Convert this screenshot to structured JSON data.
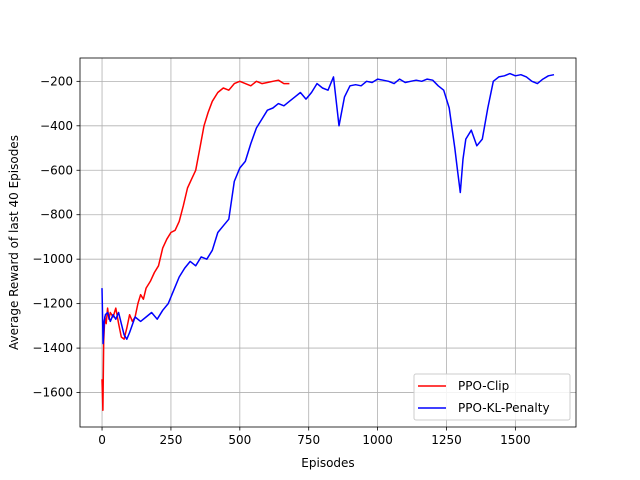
{
  "chart_data": {
    "type": "line",
    "title": "",
    "xlabel": "Episodes",
    "ylabel": "Average Reward of last 40 Episodes",
    "xlim": [
      -80,
      1720
    ],
    "ylim": [
      -1755,
      -95
    ],
    "xticks": [
      0,
      250,
      500,
      750,
      1000,
      1250,
      1500
    ],
    "yticks": [
      -1600,
      -1400,
      -1200,
      -1000,
      -800,
      -600,
      -400,
      -200
    ],
    "grid": true,
    "legend_position": "lower-right",
    "series": [
      {
        "name": "PPO-Clip",
        "color": "#ff0000",
        "x": [
          0,
          3,
          6,
          10,
          15,
          20,
          25,
          30,
          40,
          50,
          60,
          70,
          80,
          90,
          100,
          110,
          120,
          130,
          140,
          150,
          160,
          175,
          190,
          205,
          220,
          235,
          250,
          265,
          280,
          295,
          310,
          325,
          340,
          355,
          370,
          385,
          400,
          420,
          440,
          460,
          480,
          500,
          520,
          540,
          560,
          580,
          600,
          620,
          640,
          660,
          680
        ],
        "y": [
          -1540,
          -1680,
          -1370,
          -1260,
          -1290,
          -1220,
          -1270,
          -1240,
          -1260,
          -1220,
          -1290,
          -1350,
          -1360,
          -1310,
          -1250,
          -1280,
          -1260,
          -1200,
          -1160,
          -1180,
          -1130,
          -1100,
          -1060,
          -1030,
          -950,
          -910,
          -880,
          -870,
          -830,
          -760,
          -680,
          -640,
          -600,
          -500,
          -400,
          -340,
          -290,
          -250,
          -230,
          -240,
          -210,
          -200,
          -210,
          -220,
          -200,
          -210,
          -205,
          -200,
          -195,
          -210,
          -210
        ]
      },
      {
        "name": "PPO-KL-Penalty",
        "color": "#0000ff",
        "x": [
          0,
          4,
          8,
          12,
          20,
          30,
          40,
          50,
          60,
          70,
          80,
          90,
          100,
          120,
          140,
          160,
          180,
          200,
          220,
          240,
          260,
          280,
          300,
          320,
          340,
          360,
          380,
          400,
          420,
          440,
          460,
          480,
          500,
          520,
          540,
          560,
          580,
          600,
          620,
          640,
          660,
          680,
          700,
          720,
          740,
          760,
          780,
          800,
          820,
          840,
          860,
          880,
          900,
          920,
          940,
          960,
          980,
          1000,
          1020,
          1040,
          1060,
          1080,
          1100,
          1120,
          1140,
          1160,
          1180,
          1200,
          1220,
          1240,
          1260,
          1280,
          1290,
          1300,
          1310,
          1320,
          1340,
          1360,
          1380,
          1400,
          1420,
          1440,
          1460,
          1480,
          1500,
          1520,
          1540,
          1560,
          1580,
          1600,
          1620,
          1640
        ],
        "y": [
          -1130,
          -1380,
          -1280,
          -1250,
          -1240,
          -1280,
          -1250,
          -1270,
          -1240,
          -1290,
          -1340,
          -1360,
          -1330,
          -1260,
          -1280,
          -1260,
          -1240,
          -1270,
          -1230,
          -1200,
          -1140,
          -1080,
          -1040,
          -1010,
          -1030,
          -990,
          -1000,
          -960,
          -880,
          -850,
          -820,
          -650,
          -590,
          -560,
          -480,
          -410,
          -370,
          -330,
          -320,
          -300,
          -310,
          -290,
          -270,
          -250,
          -280,
          -250,
          -210,
          -230,
          -240,
          -180,
          -400,
          -270,
          -220,
          -215,
          -220,
          -200,
          -205,
          -190,
          -195,
          -200,
          -210,
          -190,
          -205,
          -200,
          -195,
          -200,
          -190,
          -195,
          -220,
          -240,
          -320,
          -500,
          -600,
          -700,
          -550,
          -460,
          -420,
          -490,
          -460,
          -320,
          -200,
          -180,
          -175,
          -165,
          -175,
          -170,
          -180,
          -200,
          -210,
          -190,
          -175,
          -170
        ]
      }
    ]
  }
}
